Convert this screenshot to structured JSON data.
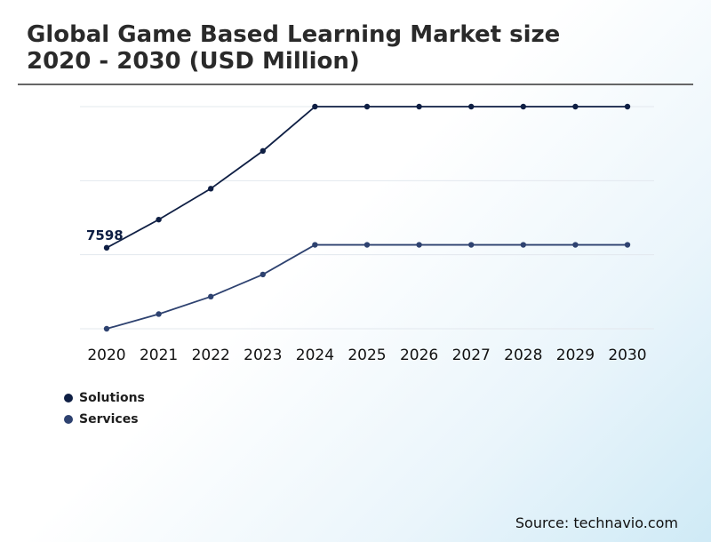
{
  "title_line1": "Global Game Based Learning Market size",
  "title_line2": "2020 - 2030 (USD Million)",
  "source": "Source: technavio.com",
  "colors": {
    "solutions": "#0f1f44",
    "services": "#2e4270",
    "grid": "#e3e8ee"
  },
  "chart_data": {
    "type": "line",
    "title": "Global Game Based Learning Market size 2020 - 2030 (USD Million)",
    "xlabel": "",
    "ylabel": "",
    "x": [
      "2020",
      "2021",
      "2022",
      "2023",
      "2024",
      "2025",
      "2026",
      "2027",
      "2028",
      "2029",
      "2030"
    ],
    "series": [
      {
        "name": "Solutions",
        "color": "#0f1f44",
        "values": [
          7598,
          9520,
          11630,
          14200,
          17220,
          17220,
          17220,
          17220,
          17220,
          17220,
          17220
        ]
      },
      {
        "name": "Services",
        "color": "#2e4270",
        "values": [
          2080,
          3080,
          4270,
          5780,
          7800,
          7800,
          7800,
          7800,
          7800,
          7800,
          7800
        ]
      }
    ],
    "data_labels": [
      {
        "series": "Solutions",
        "x": "2020",
        "text": "7598"
      }
    ],
    "ylim": [
      2080,
      17220
    ],
    "grid": true,
    "legend_position": "bottom-left"
  }
}
